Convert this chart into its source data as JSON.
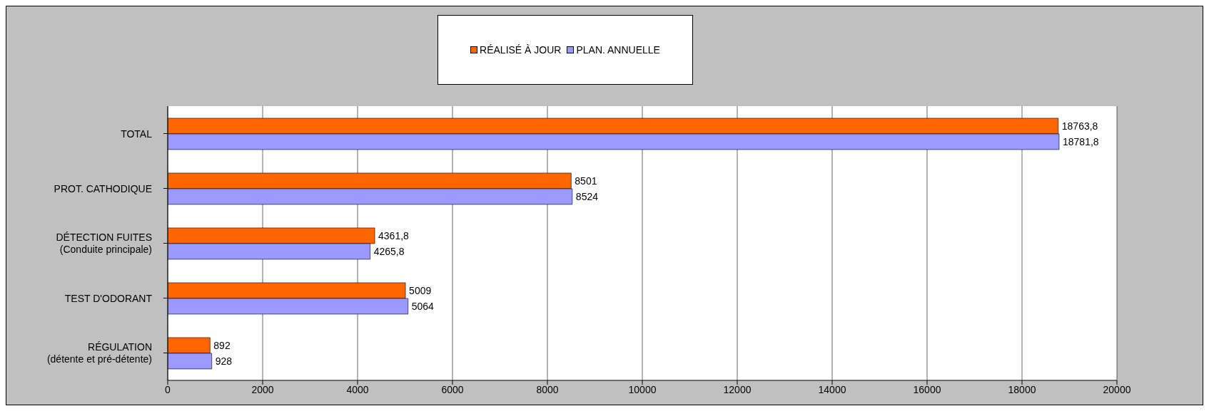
{
  "chart_data": {
    "type": "bar",
    "orientation": "horizontal",
    "categories": [
      "TOTAL",
      "PROT. CATHODIQUE",
      "DÉTECTION FUITES\n(Conduite principale)",
      "TEST D'ODORANT",
      "RÉGULATION\n(détente et pré-détente)"
    ],
    "series": [
      {
        "name": "RÉALISÉ À JOUR",
        "color": "#ff6600",
        "values": [
          18763.8,
          8501,
          4361.8,
          5009,
          892
        ],
        "value_labels": [
          "18763,8",
          "8501",
          "4361,8",
          "5009",
          "892"
        ]
      },
      {
        "name": "PLAN. ANNUELLE",
        "color": "#9999ff",
        "values": [
          18781.8,
          8524,
          4265.8,
          5064,
          928
        ],
        "value_labels": [
          "18781,8",
          "8524",
          "4265,8",
          "5064",
          "928"
        ]
      }
    ],
    "xlim": [
      0,
      20000
    ],
    "xticks": [
      0,
      2000,
      4000,
      6000,
      8000,
      10000,
      12000,
      14000,
      16000,
      18000,
      20000
    ],
    "grid": "x",
    "legend": "top"
  }
}
